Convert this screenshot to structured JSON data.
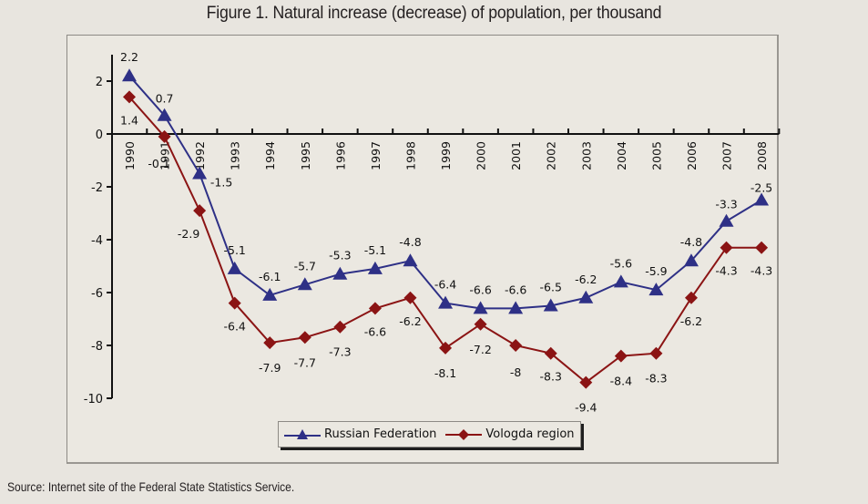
{
  "figure": {
    "title": "Figure 1. Natural increase (decrease) of population, per thousand",
    "source": "Source: Internet site of the Federal State Statistics Service."
  },
  "chart_data": {
    "type": "line",
    "title": "Figure 1. Natural increase (decrease) of population, per thousand",
    "xlabel": "",
    "ylabel": "",
    "categories": [
      "1990",
      "1991",
      "1992",
      "1993",
      "1994",
      "1995",
      "1996",
      "1997",
      "1998",
      "1999",
      "2000",
      "2001",
      "2002",
      "2003",
      "2004",
      "2005",
      "2006",
      "2007",
      "2008"
    ],
    "ylim": [
      -10,
      2
    ],
    "yticks": [
      2,
      0,
      -2,
      -4,
      -6,
      -8,
      -10
    ],
    "ytick_labels": [
      "2",
      "0",
      "-2",
      "-4",
      "-6",
      "-8",
      "-10"
    ],
    "grid": false,
    "legend_position": "bottom-center",
    "series": [
      {
        "name": "Russian Federation",
        "color": "#2e3086",
        "marker": "triangle",
        "values": [
          2.2,
          0.7,
          -1.5,
          -5.1,
          -6.1,
          -5.7,
          -5.3,
          -5.1,
          -4.8,
          -6.4,
          -6.6,
          -6.6,
          -6.5,
          -6.2,
          -5.6,
          -5.9,
          -4.8,
          -3.3,
          -2.5
        ],
        "labels": [
          "2.2",
          "0.7",
          "-1.5",
          "-5.1",
          "-6.1",
          "-5.7",
          "-5.3",
          "-5.1",
          "-4.8",
          "-6.4",
          "-6.6",
          "-6.6",
          "-6.5",
          "-6.2",
          "-5.6",
          "-5.9",
          "-4.8",
          "-3.3",
          "-2.5"
        ]
      },
      {
        "name": "Vologda region",
        "color": "#8b1414",
        "marker": "diamond",
        "values": [
          1.4,
          -0.1,
          -2.9,
          -6.4,
          -7.9,
          -7.7,
          -7.3,
          -6.6,
          -6.2,
          -8.1,
          -7.2,
          -8.0,
          -8.3,
          -9.4,
          -8.4,
          -8.3,
          -6.2,
          -4.3,
          -4.3
        ],
        "labels": [
          "1.4",
          "-0.1",
          "-2.9",
          "-6.4",
          "-7.9",
          "-7.7",
          "-7.3",
          "-6.6",
          "-6.2",
          "-8.1",
          "-7.2",
          "-8",
          "-8.3",
          "-9.4",
          "-8.4",
          "-8.3",
          "-6.2",
          "-4.3",
          "-4.3"
        ]
      }
    ]
  }
}
